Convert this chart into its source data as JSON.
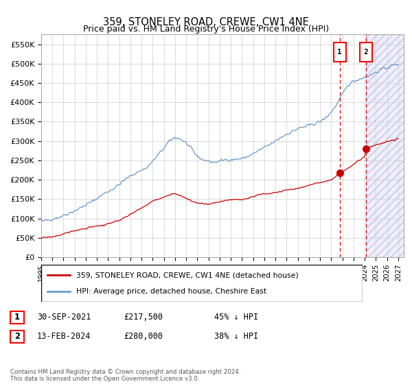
{
  "title": "359, STONELEY ROAD, CREWE, CW1 4NE",
  "subtitle": "Price paid vs. HM Land Registry's House Price Index (HPI)",
  "ylabel_ticks": [
    "£0",
    "£50K",
    "£100K",
    "£150K",
    "£200K",
    "£250K",
    "£300K",
    "£350K",
    "£400K",
    "£450K",
    "£500K",
    "£550K"
  ],
  "ytick_values": [
    0,
    50000,
    100000,
    150000,
    200000,
    250000,
    300000,
    350000,
    400000,
    450000,
    500000,
    550000
  ],
  "ylim": [
    0,
    575000
  ],
  "xlim_start": 1995.0,
  "xlim_end": 2027.5,
  "xticks": [
    1995,
    1996,
    1997,
    1998,
    1999,
    2000,
    2001,
    2002,
    2003,
    2004,
    2005,
    2006,
    2007,
    2008,
    2009,
    2010,
    2011,
    2012,
    2013,
    2014,
    2015,
    2016,
    2017,
    2018,
    2019,
    2020,
    2021,
    2022,
    2023,
    2024,
    2025,
    2026,
    2027
  ],
  "hpi_color": "#6699cc",
  "price_color": "#cc0000",
  "vline_color": "#cc0000",
  "sale1_x": 2021.75,
  "sale1_y": 217500,
  "sale1_label": "1",
  "sale2_x": 2024.12,
  "sale2_y": 280000,
  "sale2_label": "2",
  "legend_label1": "359, STONELEY ROAD, CREWE, CW1 4NE (detached house)",
  "legend_label2": "HPI: Average price, detached house, Cheshire East",
  "table_entries": [
    {
      "num": "1",
      "date": "30-SEP-2021",
      "price": "£217,500",
      "note": "45% ↓ HPI"
    },
    {
      "num": "2",
      "date": "13-FEB-2024",
      "price": "£280,000",
      "note": "38% ↓ HPI"
    }
  ],
  "footnote": "Contains HM Land Registry data © Crown copyright and database right 2024.\nThis data is licensed under the Open Government Licence v3.0.",
  "future_start": 2024.12,
  "background_color": "#ffffff",
  "hpi_key_years": [
    1995.0,
    1995.5,
    1996.0,
    1996.5,
    1997.0,
    1997.5,
    1998.0,
    1998.5,
    1999.0,
    1999.5,
    2000.0,
    2000.5,
    2001.0,
    2001.5,
    2002.0,
    2002.5,
    2003.0,
    2003.5,
    2004.0,
    2004.5,
    2005.0,
    2005.5,
    2006.0,
    2006.5,
    2007.0,
    2007.5,
    2008.0,
    2008.5,
    2009.0,
    2009.5,
    2010.0,
    2010.5,
    2011.0,
    2011.5,
    2012.0,
    2012.5,
    2013.0,
    2013.5,
    2014.0,
    2014.5,
    2015.0,
    2015.5,
    2016.0,
    2016.5,
    2017.0,
    2017.5,
    2018.0,
    2018.5,
    2019.0,
    2019.5,
    2020.0,
    2020.5,
    2021.0,
    2021.5,
    2022.0,
    2022.5,
    2023.0,
    2023.5,
    2024.0,
    2024.5,
    2025.0,
    2025.5,
    2026.0,
    2026.5,
    2027.0
  ],
  "hpi_key_vals": [
    92000,
    95000,
    99000,
    103000,
    108000,
    114000,
    120000,
    127000,
    135000,
    143000,
    152000,
    162000,
    170000,
    178000,
    188000,
    200000,
    210000,
    218000,
    225000,
    232000,
    248000,
    265000,
    282000,
    300000,
    310000,
    305000,
    295000,
    278000,
    260000,
    252000,
    248000,
    245000,
    248000,
    252000,
    252000,
    253000,
    255000,
    260000,
    267000,
    276000,
    283000,
    291000,
    300000,
    310000,
    318000,
    325000,
    332000,
    336000,
    340000,
    345000,
    350000,
    360000,
    375000,
    395000,
    420000,
    445000,
    455000,
    460000,
    465000,
    470000,
    478000,
    485000,
    490000,
    495000,
    500000
  ],
  "red_key_years": [
    1995.0,
    1995.5,
    1996.0,
    1996.5,
    1997.0,
    1997.5,
    1998.0,
    1998.5,
    1999.0,
    1999.5,
    2000.0,
    2000.5,
    2001.0,
    2001.5,
    2002.0,
    2002.5,
    2003.0,
    2003.5,
    2004.0,
    2004.5,
    2005.0,
    2005.5,
    2006.0,
    2006.5,
    2007.0,
    2007.5,
    2008.0,
    2008.5,
    2009.0,
    2009.5,
    2010.0,
    2010.5,
    2011.0,
    2011.5,
    2012.0,
    2012.5,
    2013.0,
    2013.5,
    2014.0,
    2014.5,
    2015.0,
    2015.5,
    2016.0,
    2016.5,
    2017.0,
    2017.5,
    2018.0,
    2018.5,
    2019.0,
    2019.5,
    2020.0,
    2020.5,
    2021.0,
    2021.5,
    2021.75,
    2022.0,
    2022.5,
    2023.0,
    2023.5,
    2024.0,
    2024.12,
    2024.5,
    2025.0,
    2025.5,
    2026.0,
    2026.5,
    2027.0
  ],
  "red_key_vals": [
    50000,
    51000,
    53000,
    56000,
    60000,
    65000,
    68000,
    72000,
    75000,
    78000,
    80000,
    82000,
    86000,
    90000,
    96000,
    103000,
    110000,
    120000,
    128000,
    135000,
    145000,
    150000,
    155000,
    162000,
    165000,
    158000,
    152000,
    145000,
    140000,
    138000,
    137000,
    140000,
    143000,
    148000,
    148000,
    149000,
    150000,
    153000,
    157000,
    162000,
    163000,
    165000,
    167000,
    170000,
    174000,
    176000,
    178000,
    182000,
    186000,
    190000,
    192000,
    196000,
    200000,
    210000,
    217500,
    222000,
    230000,
    240000,
    250000,
    258000,
    280000,
    285000,
    290000,
    294000,
    298000,
    302000,
    306000
  ]
}
